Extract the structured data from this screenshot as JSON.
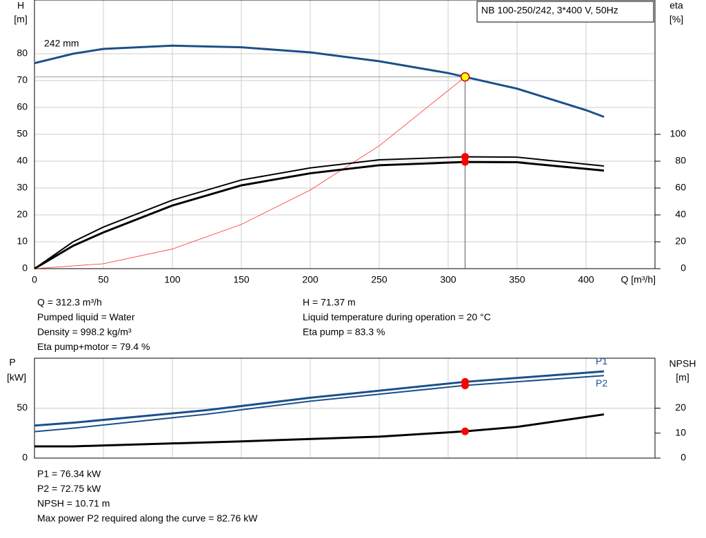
{
  "chart_data": [
    {
      "type": "line",
      "title": "NB 100-250/242, 3*400 V, 50Hz",
      "annotation": "242 mm",
      "ylabel": [
        "H",
        "[m]"
      ],
      "y2label": [
        "eta",
        "[%]"
      ],
      "xlabel": "Q [m³/h]",
      "xlim": [
        0,
        450
      ],
      "xticks": [
        0,
        50,
        100,
        150,
        200,
        250,
        300,
        350,
        400
      ],
      "ylim": [
        0,
        100
      ],
      "yticks": [
        0,
        10,
        20,
        30,
        40,
        50,
        60,
        70,
        80
      ],
      "y2lim": [
        0,
        200
      ],
      "y2ticks": [
        0,
        20,
        40,
        60,
        80,
        100
      ],
      "grid": true,
      "series": [
        {
          "color": "#1b4f8a",
          "width": 3,
          "x": [
            0,
            28,
            50,
            100,
            150,
            200,
            250,
            300,
            312.3,
            350,
            400,
            413
          ],
          "values": [
            76.5,
            80,
            81.8,
            83,
            82.4,
            80.5,
            77.2,
            72.8,
            71.37,
            67,
            59,
            56.5
          ]
        },
        {
          "color": "#ff3030",
          "width": 0.8,
          "x": [
            0,
            50,
            100,
            150,
            200,
            250,
            312.3
          ],
          "values": [
            0,
            1.83,
            7.32,
            16.46,
            29.27,
            45.73,
            71.37
          ]
        },
        {
          "color": "#000",
          "width": 2,
          "axis": "y2",
          "x": [
            0,
            28,
            50,
            100,
            150,
            200,
            250,
            312.3,
            350,
            413
          ],
          "values": [
            0,
            20,
            31,
            51,
            66,
            75,
            81,
            83.3,
            83,
            76.4
          ]
        },
        {
          "color": "#000",
          "width": 3,
          "axis": "y2",
          "x": [
            0,
            28,
            50,
            100,
            150,
            200,
            250,
            312.3,
            350,
            413
          ],
          "values": [
            0,
            17,
            27,
            47,
            62,
            71,
            77,
            79.4,
            79.2,
            73
          ]
        }
      ],
      "markers": [
        {
          "x": 312.3,
          "y": 71.37,
          "color": "#ffff00"
        },
        {
          "x": 312.3,
          "y": 83.3,
          "axis": "y2",
          "color": "#ff0000"
        },
        {
          "x": 312.3,
          "y": 79.4,
          "axis": "y2",
          "color": "#ff0000"
        }
      ]
    },
    {
      "type": "line",
      "ylabel": [
        "P",
        "[kW]"
      ],
      "y2label": [
        "NPSH",
        "[m]"
      ],
      "xlim": [
        0,
        450
      ],
      "ylim": [
        0,
        100
      ],
      "yticks": [
        0,
        50
      ],
      "y2lim": [
        0,
        40
      ],
      "y2ticks": [
        0,
        10,
        20
      ],
      "grid": true,
      "series": [
        {
          "name": "P1",
          "color": "#1b4f8a",
          "width": 3,
          "x": [
            0,
            28,
            125,
            200,
            312.3,
            413
          ],
          "values": [
            32.6,
            35.4,
            48,
            60.4,
            76.34,
            86.8
          ]
        },
        {
          "name": "P2",
          "color": "#1b4f8a",
          "width": 2,
          "x": [
            0,
            28,
            125,
            200,
            312.3,
            413
          ],
          "values": [
            26.5,
            29.9,
            44,
            57,
            72.75,
            82.6
          ]
        },
        {
          "color": "#000",
          "width": 3,
          "axis": "y2",
          "x": [
            0,
            28,
            150,
            250,
            312.3,
            350,
            413
          ],
          "values": [
            4.7,
            4.7,
            6.7,
            8.6,
            10.71,
            12.5,
            17.5
          ]
        }
      ],
      "markers": [
        {
          "x": 312.3,
          "y": 76.34,
          "color": "#ff0000"
        },
        {
          "x": 312.3,
          "y": 72.75,
          "color": "#ff0000"
        },
        {
          "x": 312.3,
          "y": 10.71,
          "axis": "y2",
          "color": "#ff0000"
        }
      ]
    }
  ],
  "info_top": {
    "left": [
      "Q = 312.3 m³/h",
      "Pumped liquid = Water",
      "Density = 998.2 kg/m³",
      "Eta pump+motor = 79.4 %"
    ],
    "right": [
      "H = 71.37 m",
      "Liquid temperature during operation = 20 °C",
      "Eta pump = 83.3 %"
    ]
  },
  "info_bottom": [
    "P1 = 76.34 kW",
    "P2 = 72.75 kW",
    "NPSH = 10.71 m",
    "Max power P2 required along the curve = 82.76 kW"
  ]
}
